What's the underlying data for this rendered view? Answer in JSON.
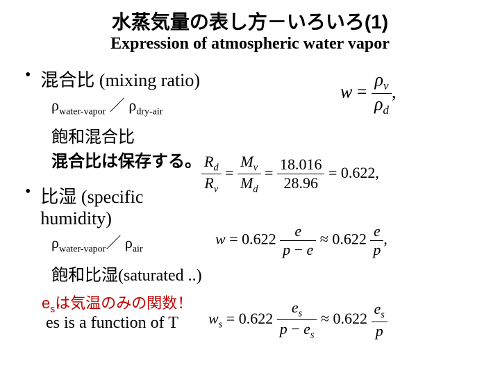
{
  "title": {
    "jp": "水蒸気量の表し方－いろいろ(1)",
    "en": "Expression of atmospheric water vapor"
  },
  "bullet1": {
    "label": "混合比 (mixing ratio)",
    "ratio_left_sym": "ρ",
    "ratio_left_sub": "water-vapor",
    "ratio_div": "／",
    "ratio_right_sym": "ρ",
    "ratio_right_sub": "dry-air",
    "sub_jp1": "飽和混合比",
    "sub_jp2": "混合比は保存する。"
  },
  "bullet2": {
    "label_l1": "比湿 (specific",
    "label_l2": "humidity)",
    "ratio_left_sym": "ρ",
    "ratio_left_sub": "water-vapor",
    "ratio_div": "／",
    "ratio_right_sym": "ρ",
    "ratio_right_sub": "air",
    "sat_label": "飽和比湿(saturated ..)"
  },
  "es_note": {
    "jp_prefix": "e",
    "jp_sub": "s",
    "jp_rest": "は気温のみの関数！",
    "en": "es is a function of T"
  },
  "eq1": {
    "lhs": "w",
    "num_sym": "ρ",
    "num_sub": "v",
    "den_sym": "ρ",
    "den_sub": "d",
    "tail": ","
  },
  "eq2": {
    "f1_num": "R",
    "f1_num_sub": "d",
    "f1_den": "R",
    "f1_den_sub": "v",
    "f2_num": "M",
    "f2_num_sub": "v",
    "f2_den": "M",
    "f2_den_sub": "d",
    "f3_num": "18.016",
    "f3_den": "28.96",
    "rhs": "0.622",
    "tail": ","
  },
  "eq3": {
    "lhs": "w",
    "coef": "0.622",
    "f1_num": "e",
    "f1_den_l": "p",
    "f1_den_op": "−",
    "f1_den_r": "e",
    "approx": "≈",
    "f2_coef": "0.622",
    "f2_num": "e",
    "f2_den": "p",
    "tail": ","
  },
  "eq4": {
    "lhs": "w",
    "lhs_sub": "s",
    "coef": "0.622",
    "f1_num": "e",
    "f1_num_sub": "s",
    "f1_den_l": "p",
    "f1_den_op": "−",
    "f1_den_r": "e",
    "f1_den_r_sub": "s",
    "approx": "≈",
    "f2_coef": "0.622",
    "f2_num": "e",
    "f2_num_sub": "s",
    "f2_den": "p"
  },
  "colors": {
    "text": "#000000",
    "accent": "#c00000",
    "background": "#ffffff"
  }
}
